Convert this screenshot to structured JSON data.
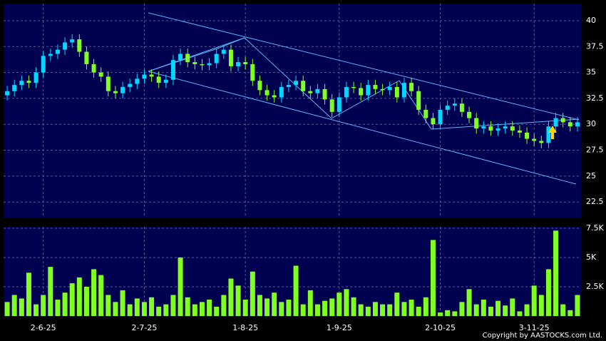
{
  "chart_data": [
    {
      "type": "candlestick",
      "categories": [
        null,
        null,
        null,
        null,
        null,
        "2-6-25",
        null,
        null,
        null,
        null,
        null,
        null,
        null,
        null,
        null,
        null,
        null,
        null,
        null,
        "2-7-25",
        null,
        null,
        null,
        null,
        null,
        null,
        null,
        null,
        null,
        null,
        null,
        null,
        null,
        "1-8-25",
        null,
        null,
        null,
        null,
        null,
        null,
        null,
        null,
        null,
        null,
        null,
        null,
        "1-9-25",
        null,
        null,
        null,
        null,
        null,
        null,
        null,
        null,
        null,
        null,
        null,
        null,
        null,
        "2-10-25",
        null,
        null,
        null,
        null,
        null,
        null,
        null,
        null,
        null,
        null,
        null,
        null,
        "3-11-25",
        null,
        null,
        null,
        null,
        null,
        null
      ],
      "open": [
        32.8,
        33.2,
        33.8,
        34.2,
        34.0,
        35.0,
        36.6,
        36.8,
        37.2,
        37.9,
        38.2,
        37.0,
        35.8,
        35.0,
        34.6,
        33.2,
        33.0,
        33.6,
        33.9,
        34.4,
        34.8,
        34.6,
        34.0,
        34.3,
        36.2,
        36.8,
        36.0,
        35.8,
        35.7,
        35.9,
        36.8,
        37.2,
        35.6,
        36.0,
        35.8,
        34.2,
        33.3,
        32.8,
        32.6,
        33.6,
        33.8,
        34.2,
        33.2,
        33.0,
        33.4,
        32.4,
        31.2,
        32.6,
        33.6,
        33.5,
        32.8,
        33.8,
        33.4,
        33.3,
        33.6,
        32.6,
        34.0,
        33.2,
        31.4,
        30.6,
        30.0,
        31.4,
        31.8,
        32.0,
        31.2,
        30.6,
        29.6,
        29.8,
        29.4,
        29.6,
        29.8,
        29.4,
        29.2,
        28.6,
        28.4,
        28.2,
        29.8,
        30.6,
        30.2,
        29.8
      ],
      "high": [
        33.7,
        34.3,
        34.7,
        34.7,
        35.5,
        37.1,
        37.3,
        37.7,
        38.4,
        38.7,
        38.7,
        37.5,
        36.3,
        35.5,
        35.1,
        33.7,
        34.1,
        34.4,
        34.9,
        35.3,
        35.3,
        35.1,
        34.8,
        36.7,
        37.3,
        37.3,
        36.5,
        36.3,
        36.4,
        37.3,
        37.7,
        37.7,
        36.5,
        36.5,
        36.3,
        34.7,
        33.8,
        33.3,
        34.1,
        34.3,
        34.7,
        34.7,
        33.7,
        33.9,
        33.9,
        32.9,
        33.1,
        34.1,
        34.1,
        34.0,
        34.3,
        34.3,
        33.9,
        34.1,
        34.1,
        34.5,
        34.5,
        33.7,
        31.9,
        31.1,
        31.9,
        32.3,
        32.5,
        32.5,
        31.7,
        31.1,
        30.3,
        30.3,
        30.1,
        30.3,
        30.3,
        29.9,
        29.7,
        29.1,
        28.9,
        30.3,
        31.1,
        31.1,
        30.7,
        30.7
      ],
      "low": [
        32.3,
        32.7,
        33.3,
        33.5,
        33.5,
        34.5,
        36.1,
        36.3,
        36.7,
        37.4,
        36.5,
        35.3,
        34.5,
        34.1,
        32.7,
        32.5,
        32.5,
        33.1,
        33.4,
        33.9,
        34.1,
        33.5,
        33.5,
        33.8,
        35.7,
        35.5,
        35.3,
        35.2,
        35.2,
        35.4,
        36.3,
        35.1,
        35.1,
        35.3,
        33.7,
        32.8,
        32.3,
        32.1,
        32.1,
        33.1,
        33.3,
        32.7,
        32.5,
        32.5,
        31.9,
        30.7,
        30.7,
        32.1,
        33.0,
        32.3,
        32.3,
        32.9,
        32.8,
        32.8,
        32.1,
        32.1,
        32.7,
        30.9,
        30.1,
        29.5,
        29.5,
        30.9,
        31.3,
        30.7,
        30.1,
        29.1,
        29.1,
        28.9,
        28.9,
        29.1,
        28.9,
        28.7,
        28.1,
        27.9,
        27.7,
        27.7,
        29.3,
        29.7,
        29.3,
        29.3
      ],
      "close": [
        33.2,
        33.8,
        34.2,
        34.0,
        35.0,
        36.6,
        36.8,
        37.2,
        37.9,
        38.2,
        37.0,
        35.8,
        35.0,
        34.6,
        33.2,
        33.0,
        33.6,
        33.9,
        34.4,
        34.8,
        34.6,
        34.0,
        34.3,
        36.2,
        36.8,
        36.0,
        35.8,
        35.7,
        35.9,
        36.8,
        37.2,
        35.6,
        36.0,
        35.8,
        34.2,
        33.3,
        32.8,
        32.6,
        33.6,
        33.8,
        34.2,
        33.2,
        33.0,
        33.4,
        32.4,
        31.2,
        32.6,
        33.6,
        33.5,
        32.8,
        33.8,
        33.4,
        33.3,
        33.6,
        32.6,
        34.0,
        33.2,
        31.4,
        30.6,
        30.0,
        31.4,
        31.8,
        32.0,
        31.2,
        30.6,
        29.6,
        29.8,
        29.4,
        29.6,
        29.8,
        29.4,
        29.2,
        28.6,
        28.4,
        28.2,
        29.8,
        30.6,
        30.2,
        29.8,
        30.2
      ],
      "up_color": "#00d8ff",
      "down_color": "#80ff20",
      "ylim": [
        21,
        41.65
      ],
      "yticks": [
        22.5,
        25,
        27.5,
        30,
        32.5,
        35,
        37.5,
        40
      ],
      "grid": true
    },
    {
      "type": "bar",
      "values": [
        1.2,
        1.8,
        1.5,
        3.7,
        1.0,
        1.8,
        4.2,
        1.4,
        2.0,
        2.8,
        3.3,
        2.5,
        4.0,
        3.5,
        1.8,
        1.2,
        2.2,
        1.0,
        1.5,
        1.2,
        1.6,
        0.8,
        1.0,
        1.8,
        5.0,
        1.6,
        1.0,
        1.2,
        1.4,
        0.8,
        1.8,
        3.2,
        2.6,
        1.4,
        3.8,
        1.8,
        1.5,
        2.0,
        1.2,
        1.4,
        4.3,
        1.0,
        2.2,
        1.0,
        1.3,
        1.5,
        2.0,
        2.3,
        1.6,
        1.0,
        0.8,
        1.2,
        1.0,
        1.0,
        2.0,
        1.2,
        1.4,
        0.8,
        1.6,
        6.5,
        0.3,
        0.5,
        0.4,
        1.2,
        2.3,
        1.0,
        1.4,
        0.8,
        1.3,
        0.9,
        1.5,
        0.4,
        1.0,
        2.6,
        1.8,
        4.0,
        7.3,
        1.0,
        0.5,
        1.8
      ],
      "color": "#80ff20",
      "ylim": [
        0,
        7.62
      ],
      "yticks": [
        {
          "value": 2.5,
          "label": "2.5K"
        },
        {
          "value": 5,
          "label": "5K"
        },
        {
          "value": 7.5,
          "label": "7.5K"
        }
      ],
      "grid": true
    }
  ],
  "copyright": "Copyright by AASTOCKS.com Ltd."
}
